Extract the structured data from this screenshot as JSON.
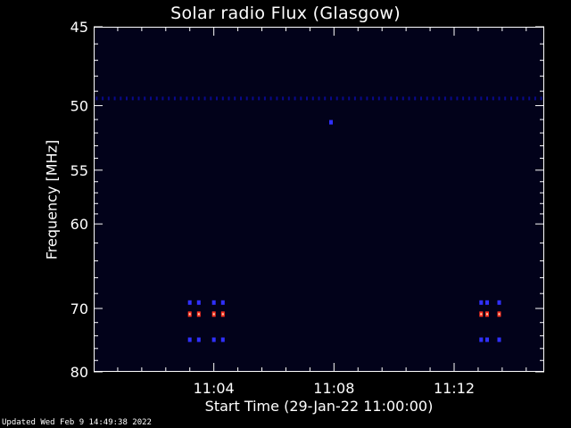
{
  "chart_data": {
    "type": "heatmap",
    "title": "Solar radio Flux (Glasgow)",
    "xlabel": "Start Time (29-Jan-22 11:00:00)",
    "ylabel": "Frequency [MHz]",
    "x_unit": "minutes after 11:00",
    "xlim": [
      0,
      15
    ],
    "ylim": [
      80,
      45
    ],
    "yscale": "reciprocal",
    "x_ticks": [
      {
        "value": 4,
        "label": "11:04"
      },
      {
        "value": 8,
        "label": "11:08"
      },
      {
        "value": 12,
        "label": "11:12"
      }
    ],
    "x_minor_ticks": [
      0.8,
      1.6,
      2.4,
      3.2,
      4.8,
      5.6,
      6.4,
      7.2,
      8.8,
      9.6,
      10.4,
      11.2,
      12.8,
      13.6,
      14.4
    ],
    "y_ticks": [
      {
        "value": 45,
        "label": "45"
      },
      {
        "value": 50,
        "label": "50"
      },
      {
        "value": 55,
        "label": "55"
      },
      {
        "value": 60,
        "label": "60"
      },
      {
        "value": 70,
        "label": "70"
      },
      {
        "value": 80,
        "label": "80"
      }
    ],
    "y_minor_ticks": [
      46,
      47,
      48,
      49,
      51,
      52,
      53,
      54,
      56,
      57,
      58,
      59,
      62,
      64,
      66,
      68,
      72,
      74,
      76,
      78
    ],
    "background_color": "#02021a",
    "colors": {
      "low": "#0a0a8c",
      "mid": "#3030ff",
      "high": "#ff3020",
      "peak": "#ffd0b0"
    },
    "band": {
      "frequency_mhz": 49.5,
      "level": "low",
      "x_start": 0.1,
      "x_end": 14.9,
      "x_step": 0.2
    },
    "features": [
      {
        "x": 3.2,
        "f": 69.2,
        "level": "mid"
      },
      {
        "x": 3.5,
        "f": 69.2,
        "level": "mid"
      },
      {
        "x": 4.0,
        "f": 69.2,
        "level": "mid"
      },
      {
        "x": 4.3,
        "f": 69.2,
        "level": "mid"
      },
      {
        "x": 12.9,
        "f": 69.2,
        "level": "mid"
      },
      {
        "x": 13.1,
        "f": 69.2,
        "level": "mid"
      },
      {
        "x": 13.5,
        "f": 69.2,
        "level": "mid"
      },
      {
        "x": 3.2,
        "f": 70.8,
        "level": "high"
      },
      {
        "x": 3.5,
        "f": 70.8,
        "level": "high"
      },
      {
        "x": 4.0,
        "f": 70.8,
        "level": "high"
      },
      {
        "x": 4.3,
        "f": 70.8,
        "level": "high"
      },
      {
        "x": 12.9,
        "f": 70.8,
        "level": "high"
      },
      {
        "x": 13.1,
        "f": 70.8,
        "level": "high"
      },
      {
        "x": 13.5,
        "f": 70.8,
        "level": "high"
      },
      {
        "x": 3.2,
        "f": 74.6,
        "level": "mid"
      },
      {
        "x": 3.5,
        "f": 74.6,
        "level": "mid"
      },
      {
        "x": 4.0,
        "f": 74.6,
        "level": "mid"
      },
      {
        "x": 4.3,
        "f": 74.6,
        "level": "mid"
      },
      {
        "x": 12.9,
        "f": 74.6,
        "level": "mid"
      },
      {
        "x": 13.1,
        "f": 74.6,
        "level": "mid"
      },
      {
        "x": 13.5,
        "f": 74.6,
        "level": "mid"
      },
      {
        "x": 7.9,
        "f": 51.2,
        "level": "mid"
      }
    ]
  },
  "footer": {
    "updated": "Updated Wed Feb  9 14:49:38 2022"
  }
}
